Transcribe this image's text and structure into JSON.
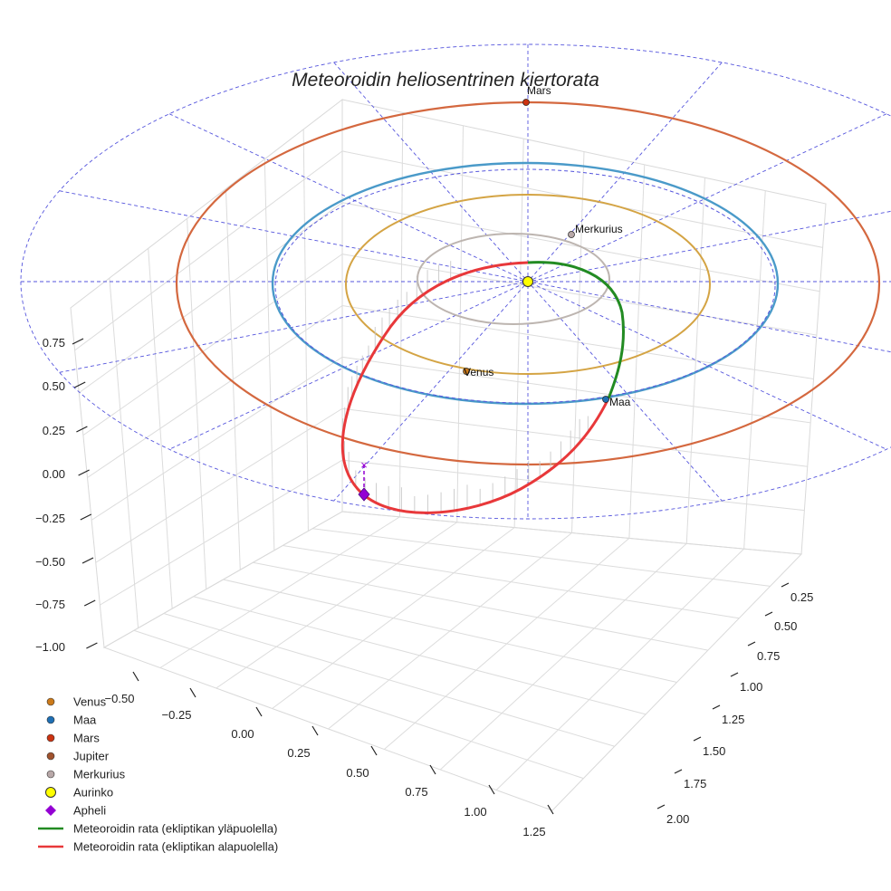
{
  "chart_data": {
    "type": "scatter3d",
    "title": "Meteoroidin heliosentrinen kiertorata",
    "axes": {
      "x": {
        "ticks": [
          "−0.50",
          "−0.25",
          "0.00",
          "0.25",
          "0.50",
          "0.75",
          "1.00",
          "1.25"
        ]
      },
      "y": {
        "ticks": [
          "0.25",
          "0.50",
          "0.75",
          "1.00",
          "1.25",
          "1.50",
          "1.75",
          "2.00"
        ]
      },
      "z": {
        "ticks": [
          "0.75",
          "0.50",
          "0.25",
          "0.00",
          "−0.25",
          "−0.50",
          "−0.75",
          "−1.00"
        ]
      }
    },
    "planets": [
      {
        "name": "Mars",
        "label": "Mars",
        "color": "#cc3311"
      },
      {
        "name": "Merkurius",
        "label": "Merkurius",
        "color": "#b8a8a8"
      },
      {
        "name": "Venus",
        "label": "Venus",
        "color": "#cc7a1a"
      },
      {
        "name": "Maa",
        "label": "Maa",
        "color": "#1f6fb4"
      }
    ],
    "orbit_colors": {
      "mars": "#d4683f",
      "earth": "#4a9ac9",
      "venus": "#d4a444",
      "mercury": "#bdb5b0",
      "ecliptic_grid": "#5555dd"
    },
    "legend": [
      {
        "label": "Venus",
        "marker": "circle",
        "color": "#cc7a1a"
      },
      {
        "label": "Maa",
        "marker": "circle",
        "color": "#1f6fb4"
      },
      {
        "label": "Mars",
        "marker": "circle",
        "color": "#cc3311"
      },
      {
        "label": "Jupiter",
        "marker": "circle",
        "color": "#a0522d"
      },
      {
        "label": "Merkurius",
        "marker": "circle",
        "color": "#b8a8a8"
      },
      {
        "label": "Aurinko",
        "marker": "circle-large",
        "color": "#ffff00"
      },
      {
        "label": "Apheli",
        "marker": "diamond",
        "color": "#9400d3"
      },
      {
        "label": "Meteoroidin rata (ekliptikan yläpuolella)",
        "marker": "line",
        "color": "#228b22"
      },
      {
        "label": "Meteoroidin rata (ekliptikan alapuolella)",
        "marker": "line",
        "color": "#e8383a"
      }
    ]
  }
}
